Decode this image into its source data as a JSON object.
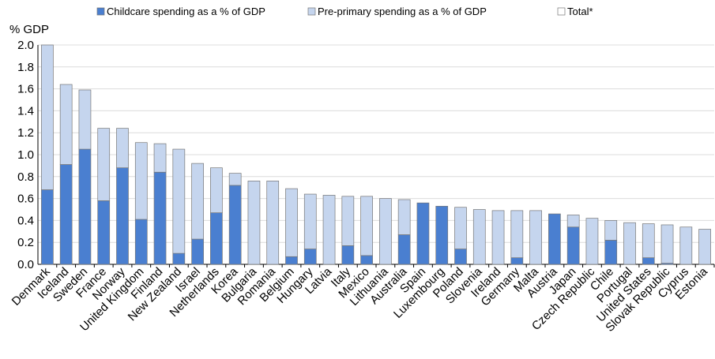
{
  "chart_data": {
    "type": "bar",
    "stacked": true,
    "y_label": "% GDP",
    "categories": [
      "Denmark",
      "Iceland",
      "Sweden",
      "France",
      "Norway",
      "United Kingdom",
      "Finland",
      "New Zealand",
      "Israel",
      "Netherlands",
      "Korea",
      "Bulgaria",
      "Romania",
      "Belgium",
      "Hungary",
      "Latvia",
      "Italy",
      "Mexico",
      "Lithuania",
      "Australia",
      "Spain",
      "Luxembourg",
      "Poland",
      "Slovenia",
      "Ireland",
      "Germany",
      "Malta",
      "Austria",
      "Japan",
      "Czech Republic",
      "Chile",
      "Portugal",
      "United States",
      "Slovak Republic",
      "Cyprus",
      "Estonia"
    ],
    "series": [
      {
        "name": "Childcare spending as a % of GDP",
        "color": "#4a7fd0",
        "values": [
          0.68,
          0.91,
          1.05,
          0.58,
          0.88,
          0.41,
          0.84,
          0.1,
          0.23,
          0.47,
          0.72,
          0,
          0,
          0.07,
          0.14,
          0,
          0.17,
          0.08,
          0,
          0.27,
          0.56,
          0.53,
          0.14,
          0,
          0,
          0.06,
          0,
          0.46,
          0.34,
          0,
          0.22,
          0,
          0.06,
          0.01,
          0,
          0
        ]
      },
      {
        "name": "Pre-primary spending as a % of GDP",
        "color": "#c5d5ee",
        "values": [
          1.32,
          0.73,
          0.54,
          0.66,
          0.36,
          0.7,
          0.26,
          0.95,
          0.69,
          0.41,
          0.11,
          0.76,
          0.76,
          0.62,
          0.5,
          0.63,
          0.45,
          0.54,
          0.6,
          0.32,
          0,
          0,
          0.38,
          0.5,
          0.49,
          0.43,
          0.49,
          0,
          0.11,
          0.42,
          0.18,
          0.38,
          0.31,
          0.35,
          0.34,
          0.32
        ]
      },
      {
        "name": "Total*",
        "color": "#ffffff",
        "values": [
          null,
          null,
          null,
          null,
          null,
          null,
          null,
          null,
          null,
          null,
          null,
          null,
          null,
          null,
          null,
          null,
          null,
          null,
          null,
          null,
          null,
          null,
          null,
          null,
          null,
          null,
          null,
          null,
          null,
          null,
          null,
          null,
          null,
          null,
          null,
          null
        ]
      }
    ],
    "ylim": [
      0,
      2.0
    ],
    "yticks": [
      {
        "value": 0,
        "label": "0.0"
      },
      {
        "value": 0.2,
        "label": "0.2"
      },
      {
        "value": 0.4,
        "label": "0.4"
      },
      {
        "value": 0.6,
        "label": "0.6"
      },
      {
        "value": 0.8,
        "label": "0.8"
      },
      {
        "value": 1,
        "label": "1.0"
      },
      {
        "value": 1.2,
        "label": "1.2"
      },
      {
        "value": 1.4,
        "label": "1.4"
      },
      {
        "value": 1.6,
        "label": "1.6"
      },
      {
        "value": 1.8,
        "label": "1.8"
      },
      {
        "value": 2,
        "label": "2.0"
      }
    ],
    "grid": true,
    "legend": "top"
  }
}
